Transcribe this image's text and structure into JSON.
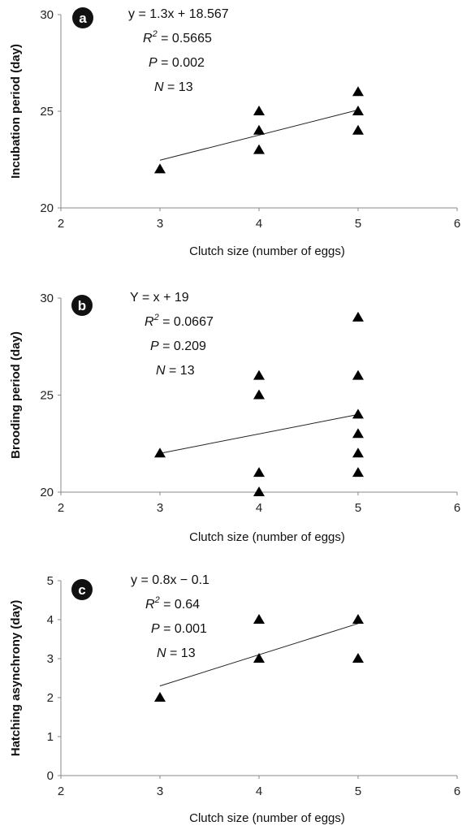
{
  "chart_data": [
    {
      "type": "scatter",
      "panel_label": "a",
      "xlabel": "Clutch size (number of eggs)",
      "ylabel": "Incubation period (day)",
      "xlim": [
        2,
        6
      ],
      "ylim": [
        20,
        30
      ],
      "xticks": [
        "2",
        "3",
        "4",
        "5",
        "6"
      ],
      "yticks": [
        "20",
        "25",
        "30"
      ],
      "marker": "triangle",
      "points": [
        {
          "x": 3,
          "y": 22
        },
        {
          "x": 4,
          "y": 25
        },
        {
          "x": 4,
          "y": 24
        },
        {
          "x": 4,
          "y": 23
        },
        {
          "x": 5,
          "y": 26
        },
        {
          "x": 5,
          "y": 25
        },
        {
          "x": 5,
          "y": 24
        }
      ],
      "trendline": {
        "slope": 1.3,
        "intercept": 18.567,
        "x_start": 3,
        "x_end": 5
      },
      "annotation": {
        "equation": "y = 1.3x + 18.567",
        "r2_label": "R",
        "r2_sup": "2",
        "r2_value": " = 0.5665",
        "p_label": "P",
        "p_value": " = 0.002",
        "n_label": "N",
        "n_value": " = 13"
      }
    },
    {
      "type": "scatter",
      "panel_label": "b",
      "xlabel": "Clutch size (number of eggs)",
      "ylabel": "Brooding period (day)",
      "xlim": [
        2,
        6
      ],
      "ylim": [
        20,
        30
      ],
      "xticks": [
        "2",
        "3",
        "4",
        "5",
        "6"
      ],
      "yticks": [
        "20",
        "25",
        "30"
      ],
      "marker": "triangle",
      "points": [
        {
          "x": 3,
          "y": 22
        },
        {
          "x": 4,
          "y": 26
        },
        {
          "x": 4,
          "y": 25
        },
        {
          "x": 4,
          "y": 21
        },
        {
          "x": 4,
          "y": 20
        },
        {
          "x": 5,
          "y": 29
        },
        {
          "x": 5,
          "y": 26
        },
        {
          "x": 5,
          "y": 24
        },
        {
          "x": 5,
          "y": 23
        },
        {
          "x": 5,
          "y": 22
        },
        {
          "x": 5,
          "y": 21
        }
      ],
      "trendline": {
        "slope": 1,
        "intercept": 19,
        "x_start": 3,
        "x_end": 5
      },
      "annotation": {
        "equation": "Y = x + 19",
        "r2_label": "R",
        "r2_sup": "2",
        "r2_value": " = 0.0667",
        "p_label": "P",
        "p_value": " = 0.209",
        "n_label": "N",
        "n_value": " = 13"
      }
    },
    {
      "type": "scatter",
      "panel_label": "c",
      "xlabel": "Clutch size (number of eggs)",
      "ylabel": "Hatching asynchrony (day)",
      "xlim": [
        2,
        6
      ],
      "ylim": [
        0,
        5
      ],
      "xticks": [
        "2",
        "3",
        "4",
        "5",
        "6"
      ],
      "yticks": [
        "0",
        "1",
        "2",
        "3",
        "4",
        "5"
      ],
      "marker": "triangle",
      "points": [
        {
          "x": 3,
          "y": 2
        },
        {
          "x": 4,
          "y": 4
        },
        {
          "x": 4,
          "y": 3
        },
        {
          "x": 5,
          "y": 4
        },
        {
          "x": 5,
          "y": 3
        }
      ],
      "trendline": {
        "slope": 0.8,
        "intercept": -0.1,
        "x_start": 3,
        "x_end": 5
      },
      "annotation": {
        "equation": "y = 0.8x − 0.1",
        "r2_label": "R",
        "r2_sup": "2",
        "r2_value": " = 0.64",
        "p_label": "P",
        "p_value": " = 0.001",
        "n_label": "N",
        "n_value": " = 13"
      }
    }
  ]
}
